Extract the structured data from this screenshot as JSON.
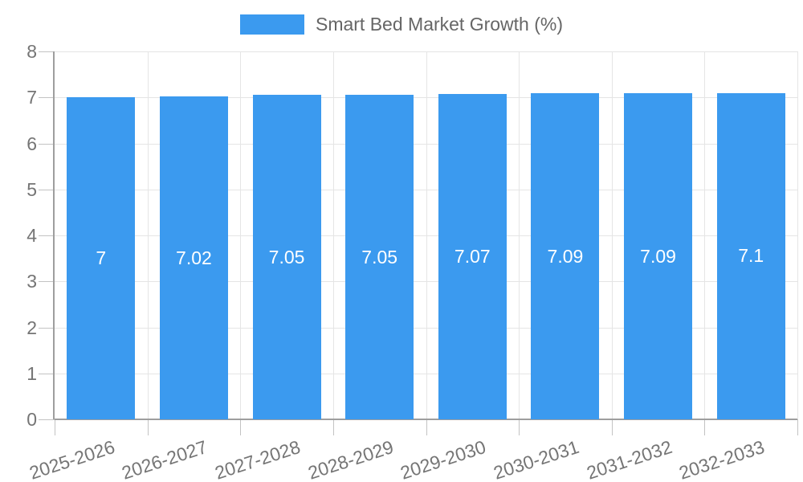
{
  "legend": {
    "label": "Smart Bed Market Growth (%)"
  },
  "chart_data": {
    "type": "bar",
    "title": "Smart Bed Market Growth (%)",
    "categories": [
      "2025-2026",
      "2026-2027",
      "2027-2028",
      "2028-2029",
      "2029-2030",
      "2030-2031",
      "2031-2032",
      "2032-2033"
    ],
    "series": [
      {
        "name": "Smart Bed Market Growth (%)",
        "values": [
          7,
          7.02,
          7.05,
          7.05,
          7.07,
          7.09,
          7.09,
          7.1
        ]
      }
    ],
    "value_labels": [
      "7",
      "7.02",
      "7.05",
      "7.05",
      "7.07",
      "7.09",
      "7.09",
      "7.1"
    ],
    "xlabel": "",
    "ylabel": "",
    "ylim": [
      0,
      8
    ],
    "y_ticks": [
      0,
      1,
      2,
      3,
      4,
      5,
      6,
      7,
      8
    ],
    "grid": true,
    "legend_position": "top-center",
    "x_tick_rotation_deg": -18,
    "colors": {
      "bar": "#3B9AEF",
      "grid": "#E5E5E5",
      "tick": "#C3C3C3",
      "axis": "#9E9E9E",
      "tick_text": "#757575",
      "legend_text": "#666666",
      "bar_label_text": "#FFFFFF",
      "background": "#FFFFFF"
    }
  }
}
